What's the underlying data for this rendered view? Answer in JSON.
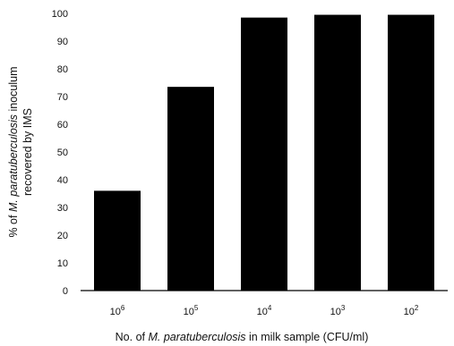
{
  "chart_data": {
    "type": "bar",
    "categories": [
      "10^6",
      "10^5",
      "10^4",
      "10^3",
      "10^2"
    ],
    "category_labels": [
      {
        "base": "10",
        "exp": "6"
      },
      {
        "base": "10",
        "exp": "5"
      },
      {
        "base": "10",
        "exp": "4"
      },
      {
        "base": "10",
        "exp": "3"
      },
      {
        "base": "10",
        "exp": "2"
      }
    ],
    "values": [
      36,
      73.5,
      98.5,
      99.5,
      99.5
    ],
    "ylim": [
      0,
      100
    ],
    "yticks": [
      "0",
      "10",
      "20",
      "30",
      "40",
      "50",
      "60",
      "70",
      "80",
      "90",
      "100"
    ],
    "ylabel": {
      "line1_prefix": "% of ",
      "line1_italic": "M. paratuberculosis",
      "line1_suffix": " inoculum",
      "line2": "recovered by IMS"
    },
    "xlabel": {
      "prefix": "No. of ",
      "italic": "M. paratuberculosis",
      "suffix": " in milk sample (CFU/ml)"
    },
    "bar_color": "#000000",
    "grid": false
  }
}
